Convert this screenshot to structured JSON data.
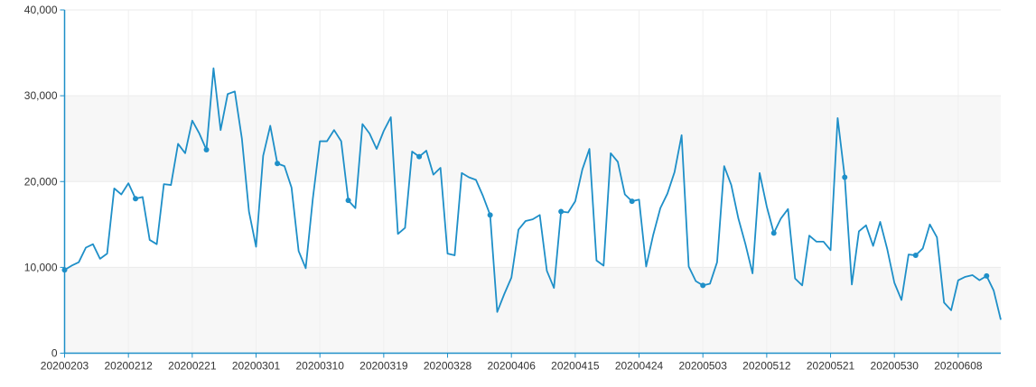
{
  "chart_data": {
    "type": "line",
    "title": "",
    "xlabel": "",
    "ylabel": "",
    "ylim": [
      0,
      40000
    ],
    "yticks": [
      "0",
      "10,000",
      "20,000",
      "30,000",
      "40,000"
    ],
    "yticks_values": [
      0,
      10000,
      20000,
      30000,
      40000
    ],
    "xticks": [
      "20200203",
      "20200212",
      "20200221",
      "20200301",
      "20200310",
      "20200319",
      "20200328",
      "20200406",
      "20200415",
      "20200424",
      "20200503",
      "20200512",
      "20200521",
      "20200530",
      "20200608"
    ],
    "grid": "horizontal-bands",
    "legend": "none",
    "colors": {
      "line": "#1e8fc8",
      "band": "#f7f7f7",
      "axis": "#1e8fc8",
      "text": "#333333"
    },
    "x": [
      "20200203",
      "20200204",
      "20200205",
      "20200206",
      "20200207",
      "20200208",
      "20200209",
      "20200210",
      "20200211",
      "20200212",
      "20200213",
      "20200214",
      "20200215",
      "20200216",
      "20200217",
      "20200218",
      "20200219",
      "20200220",
      "20200221",
      "20200222",
      "20200223",
      "20200224",
      "20200225",
      "20200226",
      "20200227",
      "20200228",
      "20200229",
      "20200301",
      "20200302",
      "20200303",
      "20200304",
      "20200305",
      "20200306",
      "20200307",
      "20200308",
      "20200309",
      "20200310",
      "20200311",
      "20200312",
      "20200313",
      "20200314",
      "20200315",
      "20200316",
      "20200317",
      "20200318",
      "20200319",
      "20200320",
      "20200321",
      "20200322",
      "20200323",
      "20200324",
      "20200325",
      "20200326",
      "20200327",
      "20200328",
      "20200329",
      "20200330",
      "20200331",
      "20200401",
      "20200402",
      "20200403",
      "20200404",
      "20200405",
      "20200406",
      "20200407",
      "20200408",
      "20200409",
      "20200410",
      "20200411",
      "20200412",
      "20200413",
      "20200414",
      "20200415",
      "20200416",
      "20200417",
      "20200418",
      "20200419",
      "20200420",
      "20200421",
      "20200422",
      "20200423",
      "20200424",
      "20200425",
      "20200426",
      "20200427",
      "20200428",
      "20200429",
      "20200430",
      "20200501",
      "20200502",
      "20200503",
      "20200504",
      "20200505",
      "20200506",
      "20200507",
      "20200508",
      "20200509",
      "20200510",
      "20200511",
      "20200512",
      "20200513",
      "20200514",
      "20200515",
      "20200516",
      "20200517",
      "20200518",
      "20200519",
      "20200520",
      "20200521",
      "20200522",
      "20200523",
      "20200524",
      "20200525",
      "20200526",
      "20200527",
      "20200528",
      "20200529",
      "20200530",
      "20200531",
      "20200601",
      "20200602",
      "20200603",
      "20200604",
      "20200605",
      "20200606",
      "20200607",
      "20200608",
      "20200609",
      "20200610",
      "20200611",
      "20200612",
      "20200613",
      "20200614"
    ],
    "values": [
      9700,
      10200,
      10600,
      12300,
      12700,
      11000,
      11600,
      19200,
      18500,
      19800,
      18000,
      18200,
      13200,
      12700,
      19700,
      19600,
      24400,
      23300,
      27100,
      25600,
      23700,
      33200,
      26000,
      30200,
      30500,
      25000,
      16500,
      12400,
      23000,
      26500,
      22100,
      21800,
      19300,
      11900,
      9900,
      18000,
      24700,
      24700,
      26000,
      24700,
      17800,
      16900,
      26700,
      25600,
      23800,
      25900,
      27500,
      13900,
      14600,
      23500,
      22900,
      23600,
      20800,
      21600,
      11600,
      11400,
      21000,
      20500,
      20200,
      18300,
      16100,
      4800,
      6900,
      8800,
      14400,
      15400,
      15600,
      16100,
      9600,
      7600,
      16500,
      16400,
      17700,
      21400,
      23800,
      10800,
      10200,
      23300,
      22300,
      18500,
      17700,
      17900,
      10100,
      13800,
      16900,
      18600,
      21100,
      25400,
      10100,
      8400,
      7900,
      8100,
      10600,
      21800,
      19600,
      15700,
      12700,
      9300,
      21000,
      17100,
      14000,
      15700,
      16800,
      8700,
      7900,
      13700,
      13000,
      13000,
      12000,
      27400,
      20500,
      8000,
      14200,
      14900,
      12500,
      15300,
      12100,
      8200,
      6200,
      11500,
      11400,
      12200,
      15000,
      13500,
      5900,
      5000,
      8500,
      8900,
      9100,
      8500,
      9000,
      7300,
      3900
    ]
  }
}
